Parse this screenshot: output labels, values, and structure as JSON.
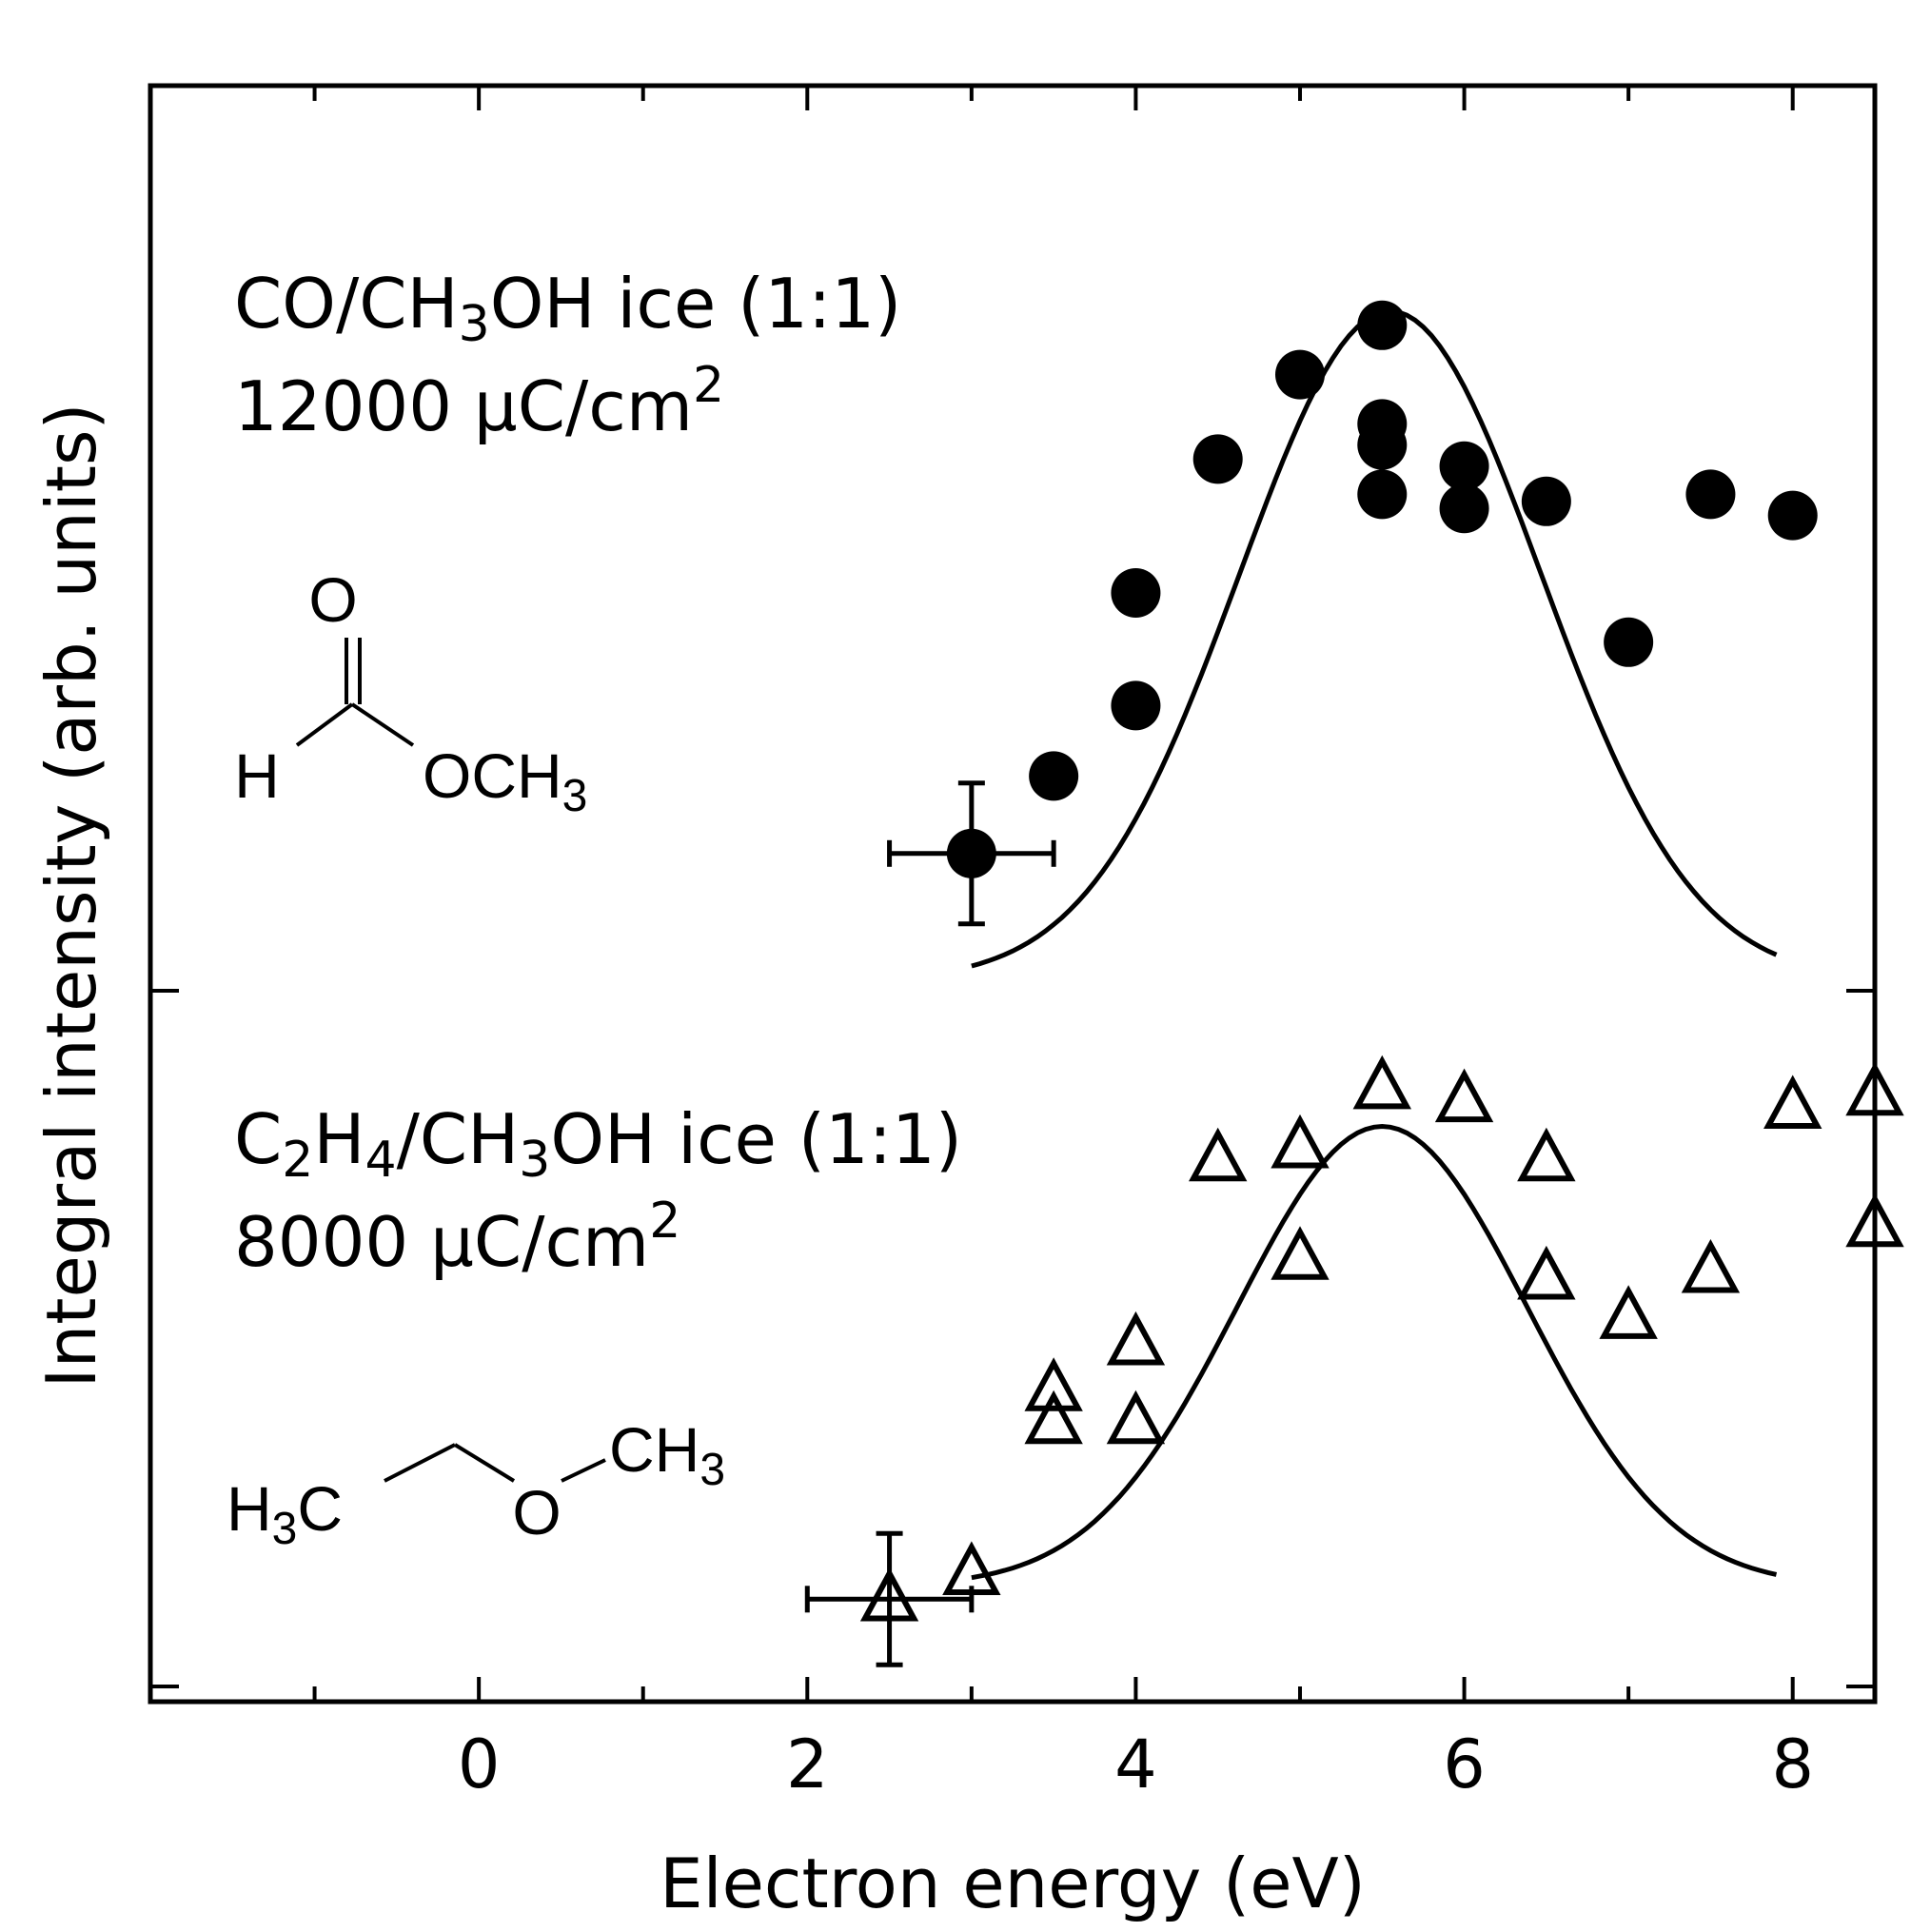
{
  "chart_data": {
    "type": "scatter",
    "xlabel": "Electron energy (eV)",
    "ylabel": "Integral intensity (arb. units)",
    "xlim": [
      -2,
      8.5
    ],
    "xticks": [
      0,
      2,
      4,
      6,
      8
    ],
    "xtick_labels": [
      "0",
      "2",
      "4",
      "6",
      "8"
    ],
    "grid": false,
    "legend": "none",
    "panels": [
      {
        "id": "top",
        "label_line1_parts": [
          "CO/CH",
          "3",
          "OH ice (1:1)"
        ],
        "label_line2_parts": [
          "12000 µC/cm",
          "2"
        ],
        "molecule": {
          "o_label": "O",
          "h_label": "H",
          "och3_parts": [
            "OCH",
            "3"
          ]
        },
        "marker": "filled-circle",
        "ylim": [
          0,
          1
        ],
        "points": [
          {
            "x": 3.0,
            "y": 0.18
          },
          {
            "x": 3.5,
            "y": 0.29
          },
          {
            "x": 4.0,
            "y": 0.39
          },
          {
            "x": 4.0,
            "y": 0.55
          },
          {
            "x": 4.5,
            "y": 0.74
          },
          {
            "x": 5.0,
            "y": 0.86
          },
          {
            "x": 5.5,
            "y": 0.93
          },
          {
            "x": 5.5,
            "y": 0.79
          },
          {
            "x": 5.5,
            "y": 0.76
          },
          {
            "x": 5.5,
            "y": 0.69
          },
          {
            "x": 6.0,
            "y": 0.73
          },
          {
            "x": 6.0,
            "y": 0.67
          },
          {
            "x": 6.5,
            "y": 0.68
          },
          {
            "x": 7.0,
            "y": 0.48
          },
          {
            "x": 7.5,
            "y": 0.69
          },
          {
            "x": 8.0,
            "y": 0.66
          }
        ],
        "errorbar": {
          "x": 3.0,
          "y": 0.18,
          "xerr": 0.5,
          "yerr": 0.1
        },
        "fit": {
          "center": 5.55,
          "amplitude": 0.95,
          "baseline": 0.0,
          "width": 1.3,
          "x_start": 3.0,
          "x_end": 7.9
        }
      },
      {
        "id": "bottom",
        "label_line1_parts": [
          "C",
          "2",
          "H",
          "4",
          "/CH",
          "3",
          "OH ice (1:1)"
        ],
        "label_line2_parts": [
          "8000 µC/cm",
          "2"
        ],
        "molecule": {
          "h3c_parts": [
            "H",
            "3",
            "C"
          ],
          "o_label": "O",
          "ch3_parts": [
            "CH",
            "3"
          ]
        },
        "marker": "open-triangle",
        "ylim": [
          0,
          1
        ],
        "points": [
          {
            "x": 2.5,
            "y": 0.13
          },
          {
            "x": 3.0,
            "y": 0.17
          },
          {
            "x": 3.5,
            "y": 0.45
          },
          {
            "x": 3.5,
            "y": 0.4
          },
          {
            "x": 4.0,
            "y": 0.52
          },
          {
            "x": 4.0,
            "y": 0.4
          },
          {
            "x": 4.5,
            "y": 0.8
          },
          {
            "x": 5.0,
            "y": 0.82
          },
          {
            "x": 5.0,
            "y": 0.65
          },
          {
            "x": 5.5,
            "y": 0.91
          },
          {
            "x": 6.0,
            "y": 0.89
          },
          {
            "x": 6.5,
            "y": 0.8
          },
          {
            "x": 6.5,
            "y": 0.62
          },
          {
            "x": 7.0,
            "y": 0.56
          },
          {
            "x": 7.5,
            "y": 0.63
          },
          {
            "x": 8.0,
            "y": 0.88
          },
          {
            "x": 8.5,
            "y": 0.9
          },
          {
            "x": 8.5,
            "y": 0.7
          }
        ],
        "errorbar": {
          "x": 2.5,
          "y": 0.13,
          "xerr": 0.5,
          "yerr": 0.1
        },
        "fit": {
          "center": 5.5,
          "amplitude": 0.7,
          "baseline": 0.15,
          "width": 1.25,
          "x_start": 3.0,
          "x_end": 7.9
        }
      }
    ]
  }
}
